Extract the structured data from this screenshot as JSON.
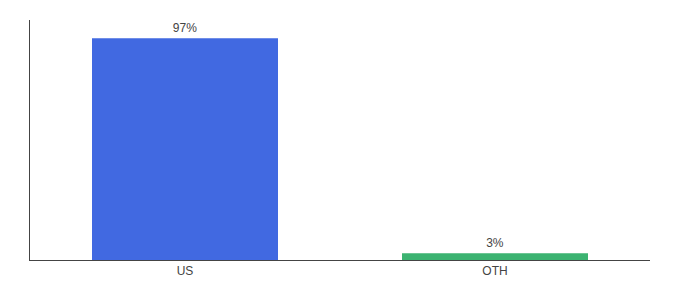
{
  "chart_data": {
    "type": "bar",
    "categories": [
      "US",
      "OTH"
    ],
    "values": [
      97,
      3
    ],
    "value_labels": [
      "97%",
      "3%"
    ],
    "data_labels": true,
    "colors": [
      "#4169E1",
      "#3CB371"
    ],
    "ylim": [
      0,
      105
    ],
    "grid": false,
    "tick_labels": "x"
  }
}
